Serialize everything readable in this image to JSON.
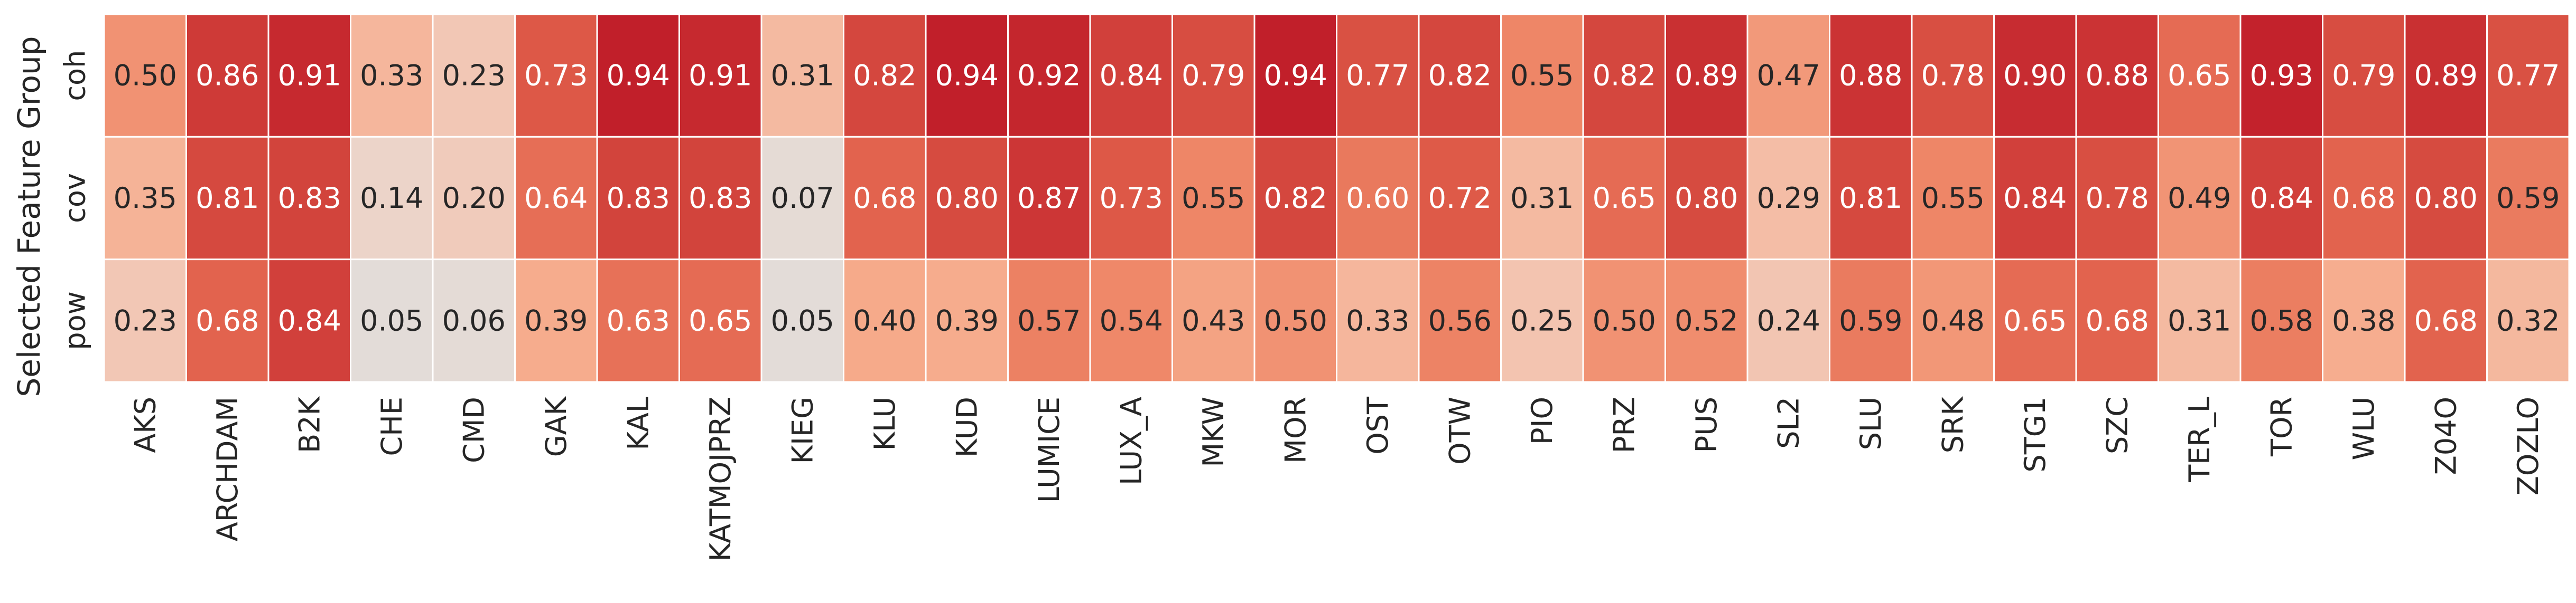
{
  "chart_data": {
    "type": "heatmap",
    "title": "",
    "xlabel": "",
    "ylabel": "Selected Feature Group",
    "x_categories": [
      "AKS",
      "ARCHDAM",
      "B2K",
      "CHE",
      "CMD",
      "GAK",
      "KAL",
      "KATMOJPRZ",
      "KIEG",
      "KLU",
      "KUD",
      "LUMICE",
      "LUX_A",
      "MKW",
      "MOR",
      "OST",
      "OTW",
      "PIO",
      "PRZ",
      "PUS",
      "SL2",
      "SLU",
      "SRK",
      "STG1",
      "SZC",
      "TER_L",
      "TOR",
      "WLU",
      "Z04O",
      "ZOZLO"
    ],
    "y_categories": [
      "coh",
      "cov",
      "pow"
    ],
    "values": [
      [
        0.5,
        0.86,
        0.91,
        0.33,
        0.23,
        0.73,
        0.94,
        0.91,
        0.31,
        0.82,
        0.94,
        0.92,
        0.84,
        0.79,
        0.94,
        0.77,
        0.82,
        0.55,
        0.82,
        0.89,
        0.47,
        0.88,
        0.78,
        0.9,
        0.88,
        0.65,
        0.93,
        0.79,
        0.89,
        0.77
      ],
      [
        0.35,
        0.81,
        0.83,
        0.14,
        0.2,
        0.64,
        0.83,
        0.83,
        0.07,
        0.68,
        0.8,
        0.87,
        0.73,
        0.55,
        0.82,
        0.6,
        0.72,
        0.31,
        0.65,
        0.8,
        0.29,
        0.81,
        0.55,
        0.84,
        0.78,
        0.49,
        0.84,
        0.68,
        0.8,
        0.59
      ],
      [
        0.23,
        0.68,
        0.84,
        0.05,
        0.06,
        0.39,
        0.63,
        0.65,
        0.05,
        0.4,
        0.39,
        0.57,
        0.54,
        0.43,
        0.5,
        0.33,
        0.56,
        0.25,
        0.5,
        0.52,
        0.24,
        0.59,
        0.48,
        0.65,
        0.68,
        0.31,
        0.58,
        0.38,
        0.68,
        0.32
      ]
    ],
    "value_format": "2 decimals",
    "colormap": "coolwarm (centered)",
    "annotations": true,
    "grid": false,
    "legend": "none"
  }
}
